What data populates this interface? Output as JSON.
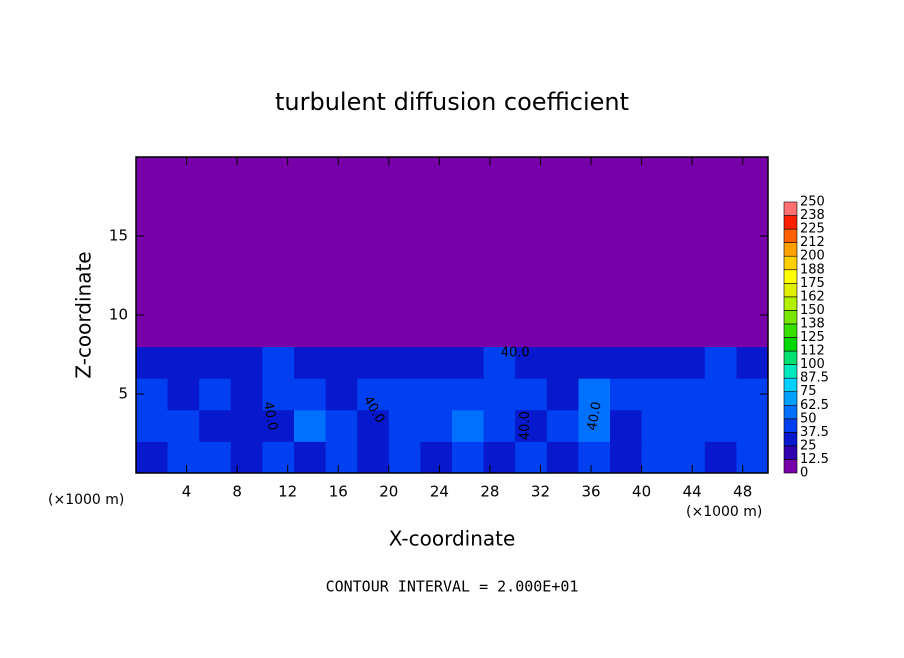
{
  "chart_data": {
    "type": "heatmap",
    "title": "turbulent diffusion coefficient",
    "xlabel": "X-coordinate",
    "ylabel": "Z-coordinate",
    "axis_unit": "(×1000 m)",
    "footer": "CONTOUR INTERVAL = 2.000E+01",
    "xlim": [
      0,
      50
    ],
    "xticks": [
      4,
      8,
      12,
      16,
      20,
      24,
      28,
      32,
      36,
      40,
      44,
      48
    ],
    "ylim": [
      0,
      20
    ],
    "yticks": [
      5,
      10,
      15
    ],
    "x": [
      1.25,
      3.75,
      6.25,
      8.75,
      11.25,
      13.75,
      16.25,
      18.75,
      21.25,
      23.75,
      26.25,
      28.75,
      31.25,
      33.75,
      36.25,
      38.75,
      41.25,
      43.75,
      46.25,
      48.75
    ],
    "y": [
      1,
      3,
      5,
      7,
      9,
      11,
      13,
      15,
      17,
      19
    ],
    "values": [
      [
        35,
        40,
        40,
        35,
        40,
        35,
        45,
        30,
        40,
        35,
        40,
        30,
        45,
        35,
        40,
        35,
        45,
        40,
        35,
        40
      ],
      [
        40,
        45,
        35,
        30,
        35,
        50,
        40,
        35,
        40,
        45,
        50,
        40,
        30,
        45,
        55,
        25,
        40,
        45,
        40,
        45
      ],
      [
        40,
        35,
        40,
        30,
        40,
        45,
        35,
        40,
        40,
        45,
        45,
        40,
        40,
        35,
        50,
        40,
        40,
        45,
        40,
        40
      ],
      [
        35,
        30,
        25,
        35,
        40,
        30,
        25,
        35,
        35,
        30,
        35,
        40,
        35,
        30,
        30,
        25,
        35,
        35,
        40,
        35
      ],
      [
        0,
        0,
        0,
        5,
        5,
        0,
        0,
        0,
        0,
        0,
        0,
        0,
        0,
        0,
        0,
        0,
        0,
        0,
        0,
        0
      ],
      [
        0,
        0,
        0,
        0,
        0,
        0,
        0,
        0,
        0,
        0,
        0,
        0,
        0,
        0,
        0,
        0,
        0,
        0,
        0,
        0
      ],
      [
        0,
        0,
        0,
        0,
        0,
        0,
        0,
        0,
        0,
        0,
        0,
        0,
        0,
        0,
        0,
        0,
        0,
        0,
        0,
        0
      ],
      [
        0,
        0,
        0,
        0,
        0,
        0,
        0,
        0,
        0,
        0,
        0,
        0,
        0,
        0,
        0,
        0,
        0,
        0,
        0,
        0
      ],
      [
        0,
        0,
        0,
        0,
        0,
        0,
        0,
        0,
        0,
        0,
        0,
        0,
        0,
        0,
        0,
        0,
        0,
        0,
        0,
        0
      ],
      [
        0,
        0,
        0,
        0,
        0,
        0,
        0,
        0,
        0,
        0,
        0,
        0,
        0,
        0,
        0,
        0,
        0,
        0,
        0,
        0
      ]
    ],
    "contour_labels": [
      "40.0",
      "40.0",
      "40.0",
      "40.0",
      "40.0"
    ],
    "colorbar": {
      "levels": [
        0,
        12.5,
        25,
        37.5,
        50,
        62.5,
        75,
        87.5,
        100,
        {
          "value": 112.5,
          "label": "112"
        },
        125,
        {
          "value": 137.5,
          "label": "138"
        },
        150,
        {
          "value": 162.5,
          "label": "162"
        },
        175,
        {
          "value": 187.5,
          "label": "188"
        },
        200,
        {
          "value": 212.5,
          "label": "212"
        },
        225,
        {
          "value": 237.5,
          "label": "238"
        },
        250
      ],
      "colors": [
        "#7800a8",
        "#3000b0",
        "#0818cc",
        "#0040f0",
        "#0070ff",
        "#00a0ff",
        "#00d0ff",
        "#00e8c0",
        "#00e070",
        "#00d800",
        "#38e000",
        "#78e800",
        "#b0f000",
        "#e0f000",
        "#ffff00",
        "#ffd000",
        "#ffa000",
        "#ff6000",
        "#ff2000",
        "#ff7070"
      ]
    }
  }
}
